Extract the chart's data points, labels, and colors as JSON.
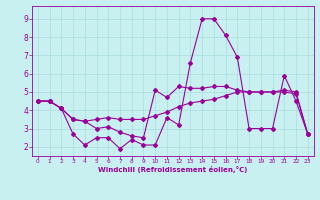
{
  "xlabel": "Windchill (Refroidissement éolien,°C)",
  "xlim": [
    -0.5,
    23.5
  ],
  "ylim": [
    1.5,
    9.7
  ],
  "yticks": [
    2,
    3,
    4,
    5,
    6,
    7,
    8,
    9
  ],
  "xticks": [
    0,
    1,
    2,
    3,
    4,
    5,
    6,
    7,
    8,
    9,
    10,
    11,
    12,
    13,
    14,
    15,
    16,
    17,
    18,
    19,
    20,
    21,
    22,
    23
  ],
  "bg_color": "#c8f0f0",
  "line_color": "#990099",
  "grid_color": "#aadddd",
  "line1_y": [
    4.5,
    4.5,
    4.1,
    2.7,
    2.1,
    2.5,
    2.5,
    1.9,
    2.4,
    2.1,
    2.1,
    3.6,
    3.2,
    6.6,
    9.0,
    9.0,
    8.1,
    6.9,
    3.0,
    3.0,
    3.0,
    5.9,
    4.5,
    2.7
  ],
  "line2_y": [
    4.5,
    4.5,
    4.1,
    3.5,
    3.4,
    3.0,
    3.1,
    2.8,
    2.6,
    2.5,
    5.1,
    4.7,
    5.3,
    5.2,
    5.2,
    5.3,
    5.3,
    5.1,
    5.0,
    5.0,
    5.0,
    5.0,
    4.9,
    2.7
  ],
  "line3_y": [
    4.5,
    4.5,
    4.1,
    3.5,
    3.4,
    3.5,
    3.6,
    3.5,
    3.5,
    3.5,
    3.7,
    3.9,
    4.2,
    4.4,
    4.5,
    4.6,
    4.8,
    5.0,
    5.0,
    5.0,
    5.0,
    5.1,
    5.0,
    2.7
  ]
}
